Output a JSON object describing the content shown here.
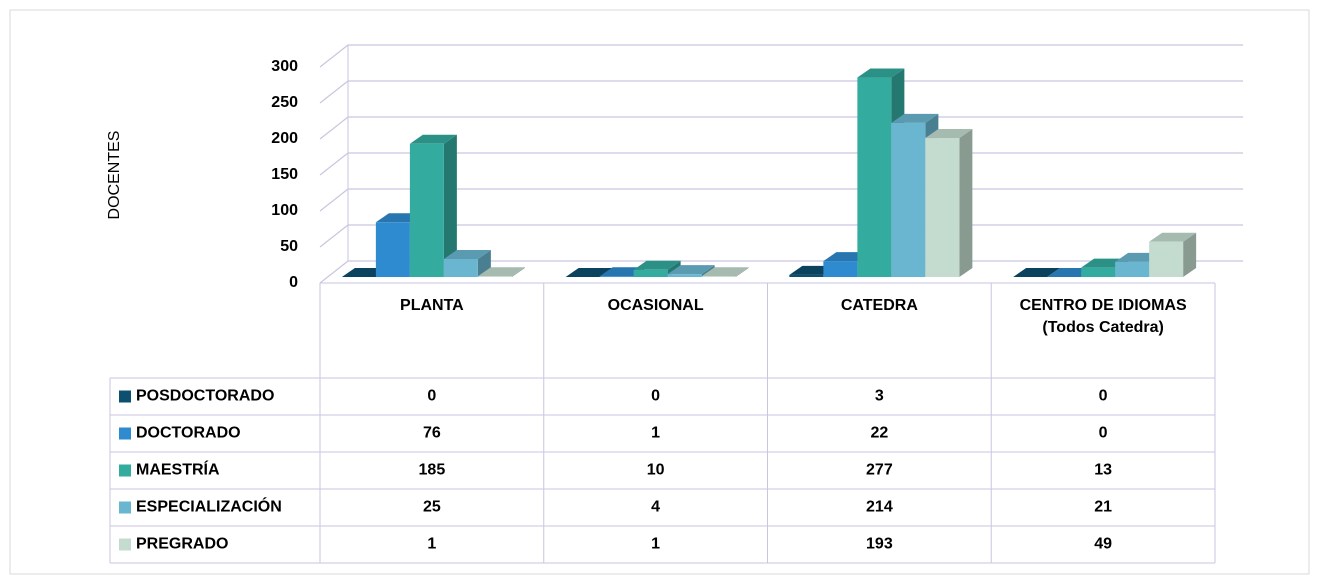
{
  "chart_data": {
    "type": "bar3d",
    "y_axis_label": "DOCENTES",
    "categories": [
      "PLANTA",
      "OCASIONAL",
      "CATEDRA",
      "CENTRO DE IDIOMAS (Todos Catedra)"
    ],
    "series": [
      {
        "name": "POSDOCTORADO",
        "color": "#0d4f6e",
        "values": [
          0,
          0,
          3,
          0
        ]
      },
      {
        "name": "DOCTORADO",
        "color": "#2e8bcf",
        "values": [
          76,
          1,
          22,
          0
        ]
      },
      {
        "name": "MAESTRÍA",
        "color": "#33ab9f",
        "values": [
          185,
          10,
          277,
          13
        ]
      },
      {
        "name": "ESPECIALIZACIÓN",
        "color": "#6ab6d0",
        "values": [
          25,
          4,
          214,
          21
        ]
      },
      {
        "name": "PREGRADO",
        "color": "#c3dccf",
        "values": [
          1,
          1,
          193,
          49
        ]
      }
    ],
    "ylim": [
      0,
      300
    ],
    "yticks": [
      0,
      50,
      100,
      150,
      200,
      250,
      300
    ],
    "grid": true,
    "data_table": true
  }
}
